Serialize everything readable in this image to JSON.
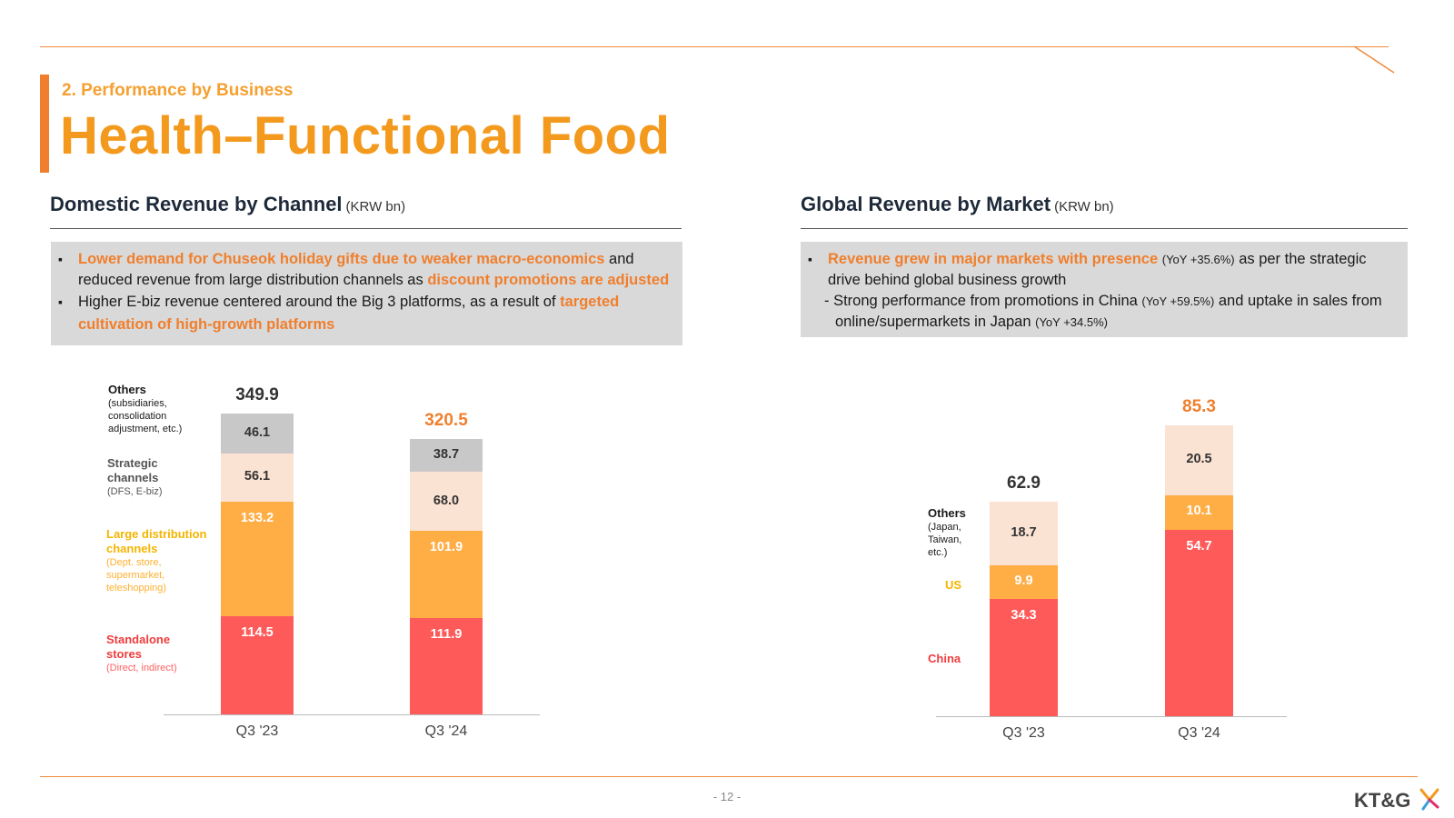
{
  "header": {
    "section": "2. Performance by Business",
    "title": "Health–Functional Food"
  },
  "domestic": {
    "title": "Domestic Revenue by Channel",
    "unit": "(KRW bn)",
    "notes": [
      {
        "parts": [
          {
            "text": "Lower demand for Chuseok holiday gifts due to weaker macro-economics",
            "hl": true
          },
          {
            "text": " and reduced revenue from large distribution channels as ",
            "hl": false
          },
          {
            "text": "discount promotions are adjusted",
            "hl": true
          }
        ]
      },
      {
        "parts": [
          {
            "text": "Higher E-biz revenue centered around the Big 3 platforms, as a result of ",
            "hl": false
          },
          {
            "text": "targeted cultivation of high-growth platforms",
            "hl": true
          }
        ]
      }
    ],
    "legend": {
      "others": {
        "name": "Others",
        "sub": "(subsidiaries, consolidation adjustment, etc.)"
      },
      "strategic": {
        "name": "Strategic channels",
        "sub": "(DFS, E-biz)"
      },
      "large": {
        "name": "Large distribution channels",
        "sub": "(Dept. store, supermarket, teleshopping)"
      },
      "standalone": {
        "name": "Standalone stores",
        "sub": "(Direct, indirect)"
      }
    }
  },
  "global": {
    "title": "Global Revenue by Market",
    "unit": "(KRW bn)",
    "notes": [
      {
        "text": "Revenue grew in major markets with presence",
        "yoy": "(YoY +35.6%)",
        "rest": " as per the strategic drive behind global business growth"
      },
      {
        "pre": "- Strong performance from promotions in China ",
        "yoy1": "(YoY +59.5%)",
        "mid": " and uptake in sales from online/supermarkets in Japan ",
        "yoy2": "(YoY +34.5%)"
      }
    ],
    "legend": {
      "others": {
        "name": "Others",
        "sub": "(Japan, Taiwan, etc.)"
      },
      "us": {
        "name": "US"
      },
      "china": {
        "name": "China"
      }
    }
  },
  "chart_data": [
    {
      "type": "bar",
      "stacked": true,
      "title": "Domestic Revenue by Channel",
      "unit": "(KRW bn)",
      "categories": [
        "Q3 '23",
        "Q3 '24"
      ],
      "totals": [
        "349.9",
        "320.5"
      ],
      "series": [
        {
          "name": "Standalone stores",
          "values": [
            114.5,
            111.9
          ],
          "labels": [
            "114.5",
            "111.9"
          ],
          "color": "#ff5a5a",
          "text_color": "#ffffff"
        },
        {
          "name": "Large distribution channels",
          "values": [
            133.2,
            101.9
          ],
          "labels": [
            "133.2",
            "101.9"
          ],
          "color": "#ffad45",
          "text_color": "#ffffff"
        },
        {
          "name": "Strategic channels",
          "values": [
            56.1,
            68.0
          ],
          "labels": [
            "56.1",
            "68.0"
          ],
          "color": "#fbe3d4",
          "text_color": "#333333"
        },
        {
          "name": "Others",
          "values": [
            46.1,
            38.7
          ],
          "labels": [
            "46.1",
            "38.7"
          ],
          "color": "#c8c8c8",
          "text_color": "#333333"
        }
      ],
      "total_colors": [
        "#333333",
        "#f07f2d"
      ],
      "ylim": [
        0,
        349.9
      ]
    },
    {
      "type": "bar",
      "stacked": true,
      "title": "Global Revenue by Market",
      "unit": "(KRW bn)",
      "categories": [
        "Q3 '23",
        "Q3 '24"
      ],
      "totals": [
        "62.9",
        "85.3"
      ],
      "series": [
        {
          "name": "China",
          "values": [
            34.3,
            54.7
          ],
          "labels": [
            "34.3",
            "54.7"
          ],
          "color": "#ff5a5a",
          "text_color": "#ffffff"
        },
        {
          "name": "US",
          "values": [
            9.9,
            10.1
          ],
          "labels": [
            "9.9",
            "10.1"
          ],
          "color": "#ffad45",
          "text_color": "#ffffff"
        },
        {
          "name": "Others",
          "values": [
            18.7,
            20.5
          ],
          "labels": [
            "18.7",
            "20.5"
          ],
          "color": "#fbe3d4",
          "text_color": "#333333"
        }
      ],
      "total_colors": [
        "#333333",
        "#f07f2d"
      ],
      "ylim": [
        0,
        85.3
      ]
    }
  ],
  "footer": {
    "page": "- 12 -",
    "logo": "KT&G"
  }
}
